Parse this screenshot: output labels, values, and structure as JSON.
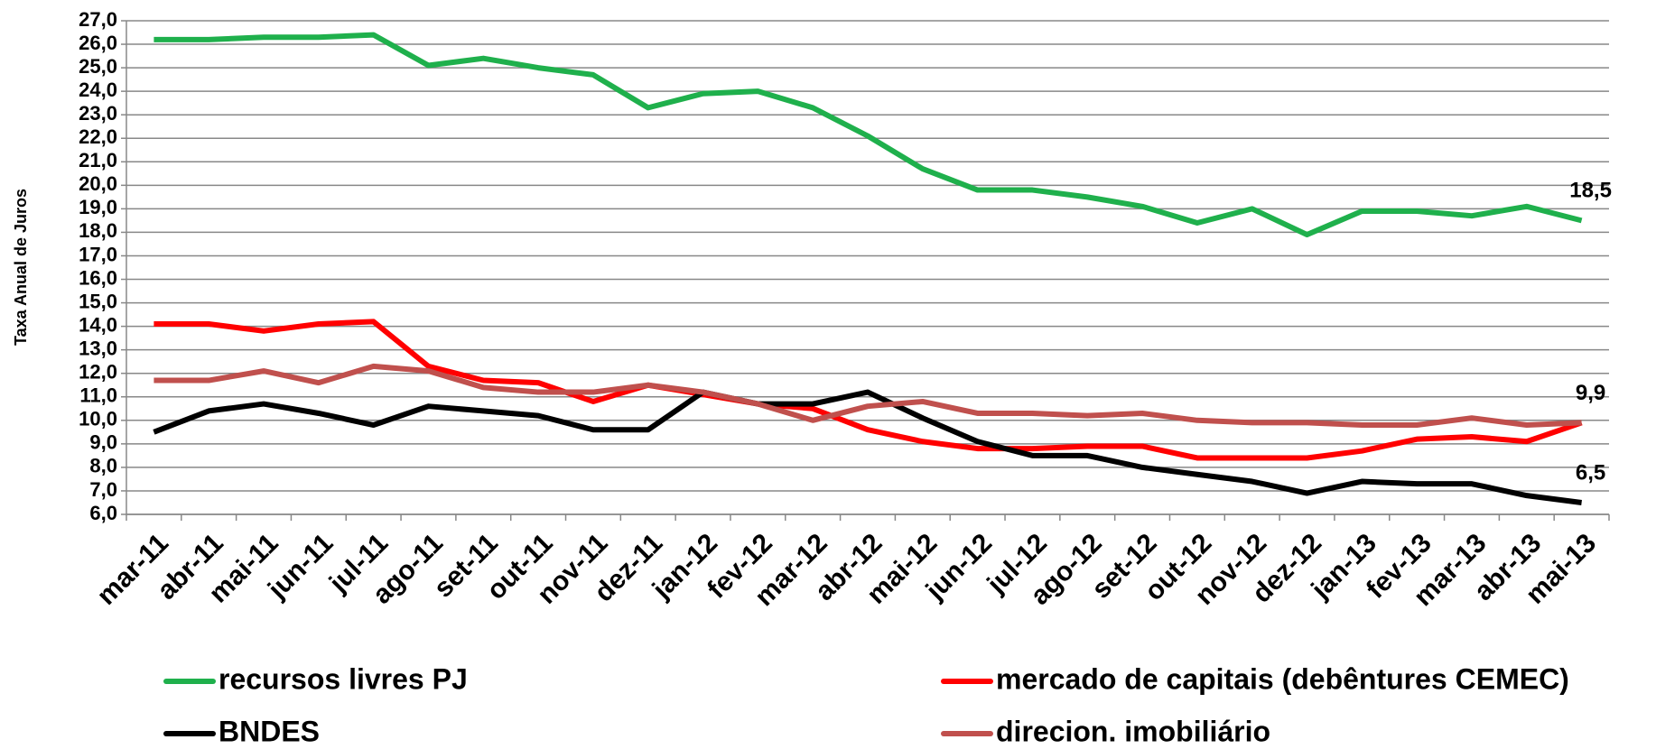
{
  "chart_data": {
    "type": "line",
    "y_label": "Taxa Anual de Juros",
    "categories": [
      "mar-11",
      "abr-11",
      "mai-11",
      "jun-11",
      "jul-11",
      "ago-11",
      "set-11",
      "out-11",
      "nov-11",
      "dez-11",
      "jan-12",
      "fev-12",
      "mar-12",
      "abr-12",
      "mai-12",
      "jun-12",
      "jul-12",
      "ago-12",
      "set-12",
      "out-12",
      "nov-12",
      "dez-12",
      "jan-13",
      "fev-13",
      "mar-13",
      "abr-13",
      "mai-13"
    ],
    "series": [
      {
        "name": "recursos livres PJ",
        "color": "#1fb04c",
        "values": [
          26.2,
          26.2,
          26.3,
          26.3,
          26.4,
          25.1,
          25.4,
          25.0,
          24.7,
          23.3,
          23.9,
          24.0,
          23.3,
          22.1,
          20.7,
          19.8,
          19.8,
          19.5,
          19.1,
          18.4,
          19.0,
          17.9,
          18.9,
          18.9,
          18.7,
          19.1,
          18.5
        ],
        "value_labels": [
          null,
          null,
          null,
          null,
          null,
          null,
          null,
          null,
          null,
          null,
          null,
          null,
          null,
          null,
          null,
          null,
          null,
          null,
          null,
          null,
          null,
          null,
          null,
          null,
          null,
          null,
          "18,5"
        ]
      },
      {
        "name": "mercado de capitais (debêntures CEMEC)",
        "color": "#ff0000",
        "values": [
          14.1,
          14.1,
          13.8,
          14.1,
          14.2,
          12.3,
          11.7,
          11.6,
          10.8,
          11.5,
          11.1,
          10.7,
          10.5,
          9.6,
          9.1,
          8.8,
          8.8,
          8.9,
          8.9,
          8.4,
          8.4,
          8.4,
          8.7,
          9.2,
          9.3,
          9.1,
          9.9
        ],
        "value_labels": [
          null,
          null,
          null,
          null,
          null,
          null,
          null,
          null,
          null,
          null,
          null,
          null,
          null,
          null,
          null,
          null,
          null,
          null,
          null,
          null,
          null,
          null,
          null,
          null,
          null,
          null,
          "9,9"
        ]
      },
      {
        "name": "BNDES",
        "color": "#000000",
        "values": [
          9.5,
          10.4,
          10.7,
          10.3,
          9.8,
          10.6,
          10.4,
          10.2,
          9.6,
          9.6,
          11.2,
          10.7,
          10.7,
          11.2,
          10.1,
          9.1,
          8.5,
          8.5,
          8.0,
          7.7,
          7.4,
          6.9,
          7.4,
          7.3,
          7.3,
          6.8,
          6.5
        ],
        "value_labels": [
          null,
          null,
          null,
          null,
          null,
          null,
          null,
          null,
          null,
          null,
          null,
          null,
          null,
          null,
          null,
          null,
          null,
          null,
          null,
          null,
          null,
          null,
          null,
          null,
          null,
          null,
          "6,5"
        ]
      },
      {
        "name": "direcion. imobiliário",
        "color": "#c0504d",
        "values": [
          11.7,
          11.7,
          12.1,
          11.6,
          12.3,
          12.1,
          11.4,
          11.2,
          11.2,
          11.5,
          11.2,
          10.7,
          10.0,
          10.6,
          10.8,
          10.3,
          10.3,
          10.2,
          10.3,
          10.0,
          9.9,
          9.9,
          9.8,
          9.8,
          10.1,
          9.8,
          9.9
        ]
      }
    ],
    "ylim": [
      6,
      27
    ],
    "yticks": [
      {
        "value": 6,
        "label": "6,0"
      },
      {
        "value": 7,
        "label": "7,0"
      },
      {
        "value": 8,
        "label": "8,0"
      },
      {
        "value": 9,
        "label": "9,0"
      },
      {
        "value": 10,
        "label": "10,0"
      },
      {
        "value": 11,
        "label": "11,0"
      },
      {
        "value": 12,
        "label": "12,0"
      },
      {
        "value": 13,
        "label": "13,0"
      },
      {
        "value": 14,
        "label": "14,0"
      },
      {
        "value": 15,
        "label": "15,0"
      },
      {
        "value": 16,
        "label": "16,0"
      },
      {
        "value": 17,
        "label": "17,0"
      },
      {
        "value": 18,
        "label": "18,0"
      },
      {
        "value": 19,
        "label": "19,0"
      },
      {
        "value": 20,
        "label": "20,0"
      },
      {
        "value": 21,
        "label": "21,0"
      },
      {
        "value": 22,
        "label": "22,0"
      },
      {
        "value": 23,
        "label": "23,0"
      },
      {
        "value": 24,
        "label": "24,0"
      },
      {
        "value": 25,
        "label": "25,0"
      },
      {
        "value": 26,
        "label": "26,0"
      },
      {
        "value": 27,
        "label": "27,0"
      }
    ],
    "grid": true
  }
}
